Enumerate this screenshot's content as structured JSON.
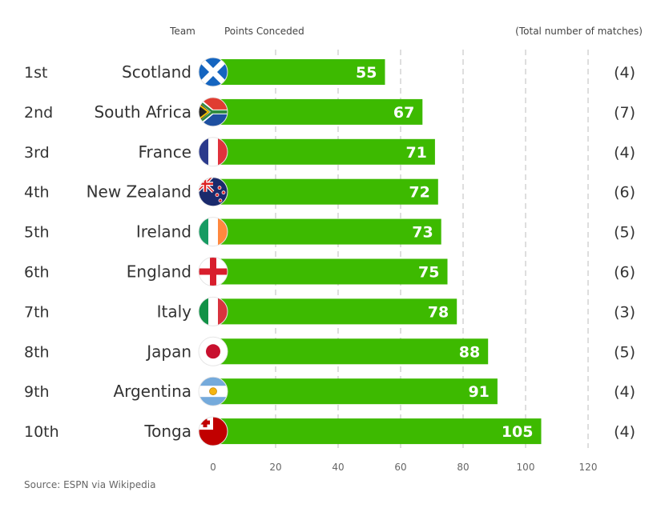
{
  "chart_data": {
    "type": "bar",
    "orientation": "horizontal",
    "headers": {
      "team": "Team",
      "value": "Points Conceded",
      "matches": "(Total number of matches)"
    },
    "categories": [
      "Scotland",
      "South Africa",
      "France",
      "New Zealand",
      "Ireland",
      "England",
      "Italy",
      "Japan",
      "Argentina",
      "Tonga"
    ],
    "ranks": [
      "1st",
      "2nd",
      "3rd",
      "4th",
      "5th",
      "6th",
      "7th",
      "8th",
      "9th",
      "10th"
    ],
    "values": [
      55,
      67,
      71,
      72,
      73,
      75,
      78,
      88,
      91,
      105
    ],
    "matches": [
      "(4)",
      "(7)",
      "(4)",
      "(6)",
      "(5)",
      "(6)",
      "(3)",
      "(5)",
      "(4)",
      "(4)"
    ],
    "flag_icons": [
      "scotland-flag-icon",
      "south-africa-flag-icon",
      "france-flag-icon",
      "new-zealand-flag-icon",
      "ireland-flag-icon",
      "england-flag-icon",
      "italy-flag-icon",
      "japan-flag-icon",
      "argentina-flag-icon",
      "tonga-flag-icon"
    ],
    "xlim": [
      0,
      120
    ],
    "xticks": [
      0,
      20,
      40,
      60,
      80,
      100,
      120
    ],
    "grid": true,
    "bar_color": "#3dba00",
    "source": "Source: ESPN via Wikipedia"
  }
}
